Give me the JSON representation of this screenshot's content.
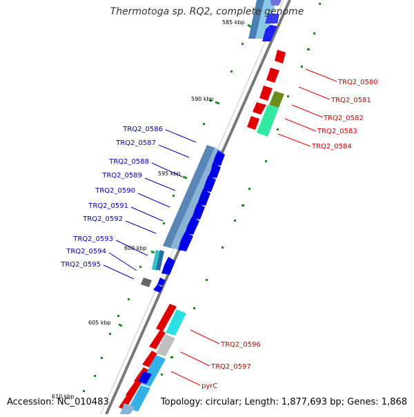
{
  "title": "Thermotoga sp. RQ2, complete genome",
  "footer": {
    "accession": "Accession: NC_010483",
    "summary": "Topology: circular; Length: 1,877,693 bp; Genes: 1,868"
  },
  "ticks": [
    {
      "label": "585 kbp"
    },
    {
      "label": "590 kbp"
    },
    {
      "label": "595 kbp"
    },
    {
      "label": "600 kbp"
    },
    {
      "label": "605 kbp"
    },
    {
      "label": "610 kbp"
    }
  ],
  "right_labels": [
    "TRQ2_0580",
    "TRQ2_0581",
    "TRQ2_0582",
    "TRQ2_0583",
    "TRQ2_0584",
    "TRQ2_0596",
    "TRQ2_0597",
    "pyrC"
  ],
  "left_labels": [
    "TRQ2_0586",
    "TRQ2_0587",
    "TRQ2_0588",
    "TRQ2_0589",
    "TRQ2_0590",
    "TRQ2_0591",
    "TRQ2_0592",
    "TRQ2_0593",
    "TRQ2_0594",
    "TRQ2_0595"
  ],
  "colors": {
    "forward": "#e00000",
    "reverse": "#0000e6",
    "forward_label": "#cc0000",
    "reverse_label": "#0000aa",
    "backbone": "#777777",
    "tick": "#1a8a1a"
  }
}
